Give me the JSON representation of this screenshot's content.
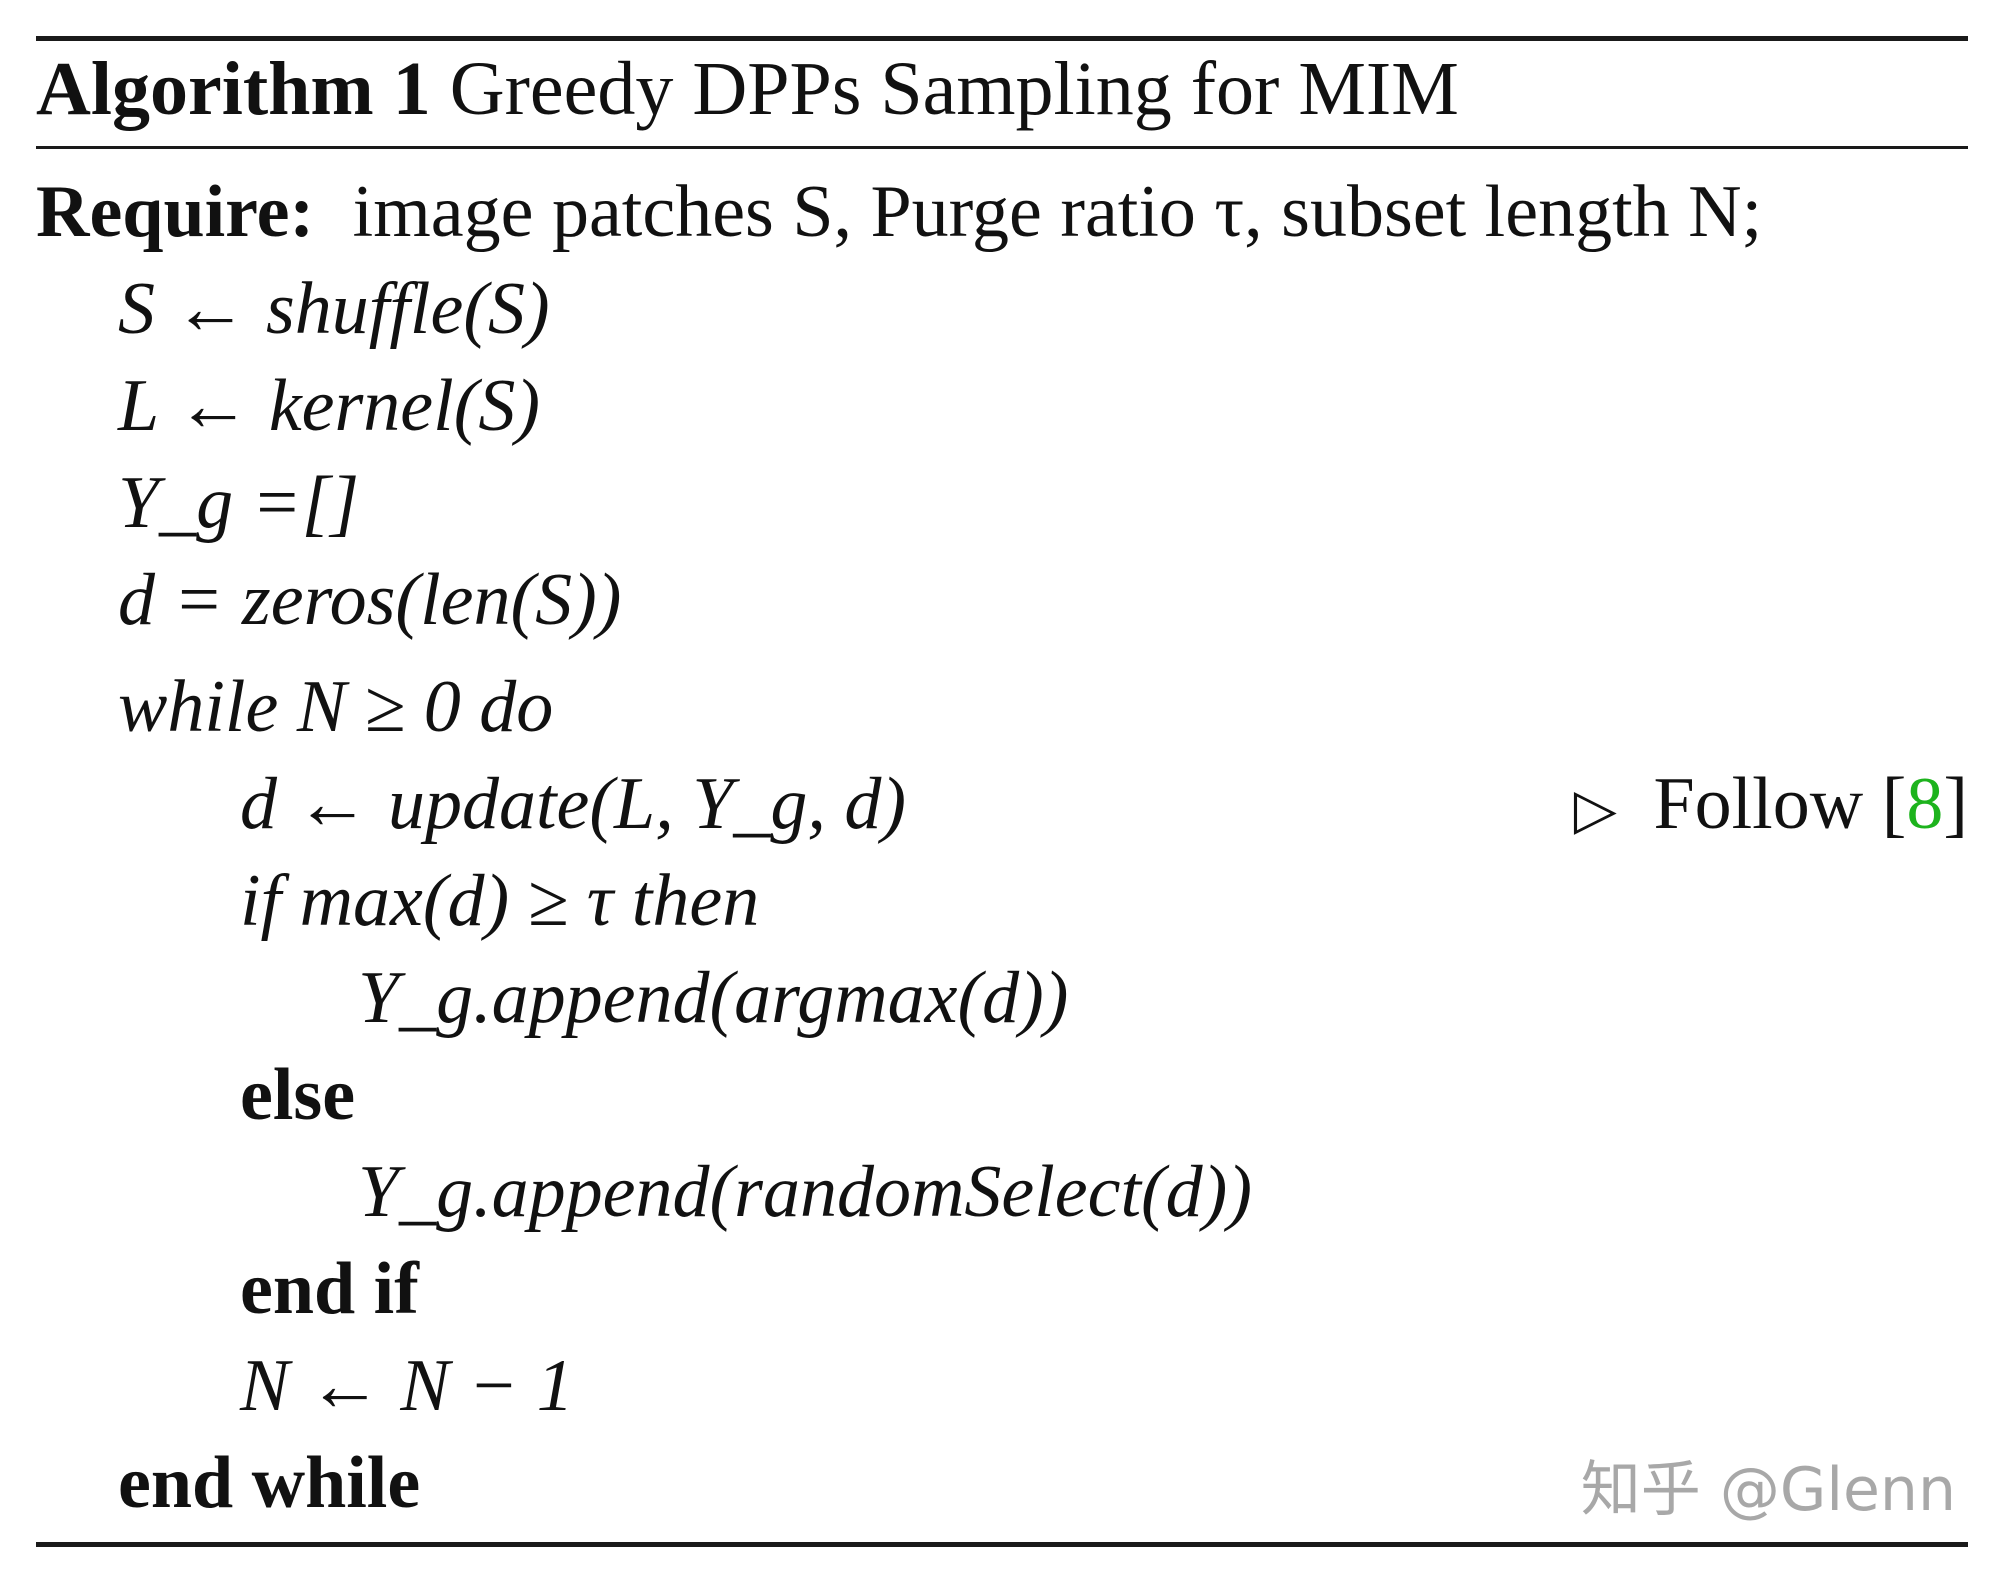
{
  "caption": {
    "label": "Algorithm 1",
    "title": "Greedy DPPs Sampling for MIM"
  },
  "require": {
    "keyword": "Require:",
    "text": "image patches S, Purge ratio τ, subset length N;"
  },
  "lines": {
    "l1": "S ← shuffle(S)",
    "l2": "L ← kernel(S)",
    "l3": "Y_g =[]",
    "l4": "d = zeros(len(S))",
    "l5": "while N ≥ 0 do",
    "l6": "d ← update(L, Y_g, d)",
    "l7": "if max(d) ≥ τ then",
    "l8": "Y_g.append(argmax(d))",
    "l9": "else",
    "l10": "Y_g.append(randomSelect(d))",
    "l11": "end if",
    "l12": "N ← N − 1",
    "l13": "end while"
  },
  "keywords": {
    "while": "while",
    "do": "do",
    "if": "if",
    "then": "then",
    "else": "else",
    "end_if": "end if",
    "end_while": "end while"
  },
  "comment": {
    "marker": "▷",
    "text": "Follow",
    "citation": "8",
    "citation_color": "#1db31d"
  },
  "watermark": "知乎 @Glenn"
}
